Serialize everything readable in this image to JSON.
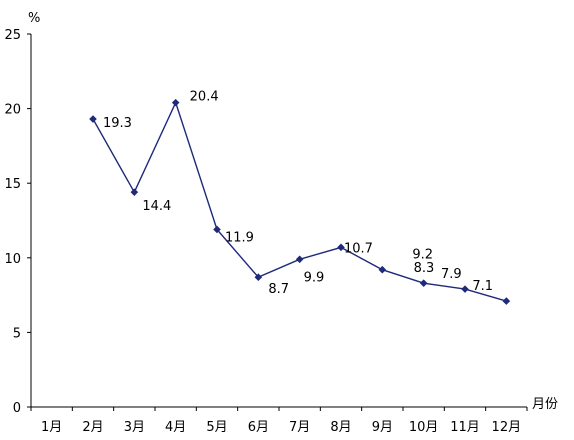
{
  "chart_data": {
    "type": "line",
    "title": "",
    "xlabel": "月份",
    "ylabel": "%",
    "categories": [
      "1月",
      "2月",
      "3月",
      "4月",
      "5月",
      "6月",
      "7月",
      "8月",
      "9月",
      "10月",
      "11月",
      "12月"
    ],
    "series": [
      {
        "values": [
          null,
          19.3,
          14.4,
          20.4,
          11.9,
          8.7,
          9.9,
          10.7,
          9.2,
          8.3,
          7.9,
          7.1
        ],
        "labels": [
          null,
          "19.3",
          "14.4",
          "20.4",
          "11.9",
          "8.7",
          "9.9",
          "10.7",
          "9.2",
          "8.3",
          "7.9",
          "7.1"
        ]
      }
    ],
    "ylim": [
      0,
      25
    ],
    "yticks": [
      0,
      5,
      10,
      15,
      20,
      25
    ],
    "grid": false,
    "line_color": "#1F2A7A",
    "marker": "diamond"
  }
}
